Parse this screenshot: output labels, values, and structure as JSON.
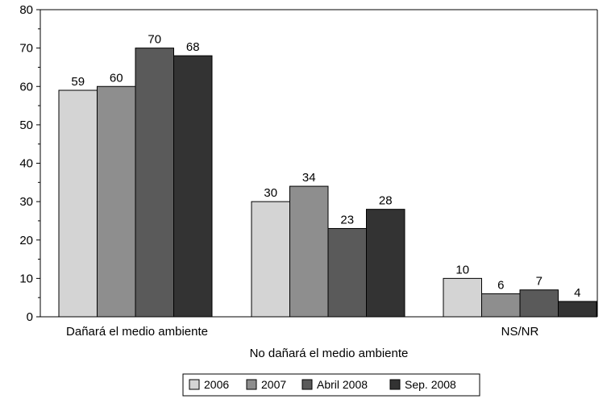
{
  "chart_data": {
    "type": "bar",
    "title": "",
    "xlabel": "",
    "ylabel": "",
    "ylim": [
      0,
      80
    ],
    "yticks": [
      0,
      10,
      20,
      30,
      40,
      50,
      60,
      70,
      80
    ],
    "grid": false,
    "legend_position": "bottom-center",
    "categories": [
      "Dañará el medio ambiente",
      "No dañará el medio ambiente",
      "NS/NR"
    ],
    "series": [
      {
        "name": "2006",
        "color": "#d4d4d4",
        "values": [
          59,
          30,
          10
        ]
      },
      {
        "name": "2007",
        "color": "#8e8e8e",
        "values": [
          60,
          34,
          6
        ]
      },
      {
        "name": "Abril 2008",
        "color": "#5a5a5a",
        "values": [
          70,
          23,
          7
        ]
      },
      {
        "name": "Sep. 2008",
        "color": "#333333",
        "values": [
          68,
          28,
          4
        ]
      }
    ]
  }
}
